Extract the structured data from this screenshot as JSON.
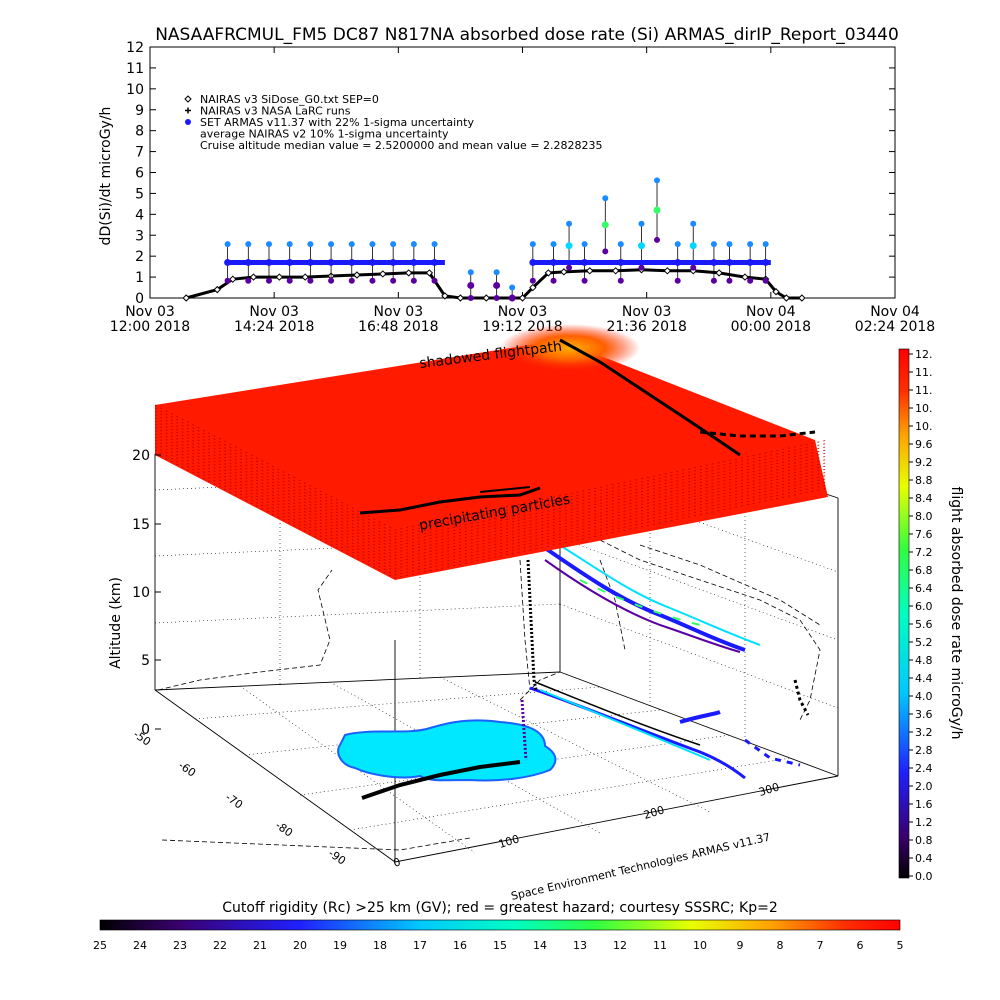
{
  "title": "NASAAFRCMUL_FM5 DC87 N817NA absorbed dose rate (Si) ARMAS_dirIP_Report_03440",
  "chart_data": [
    {
      "type": "scatter",
      "ylabel": "dD(Si)/dt microGy/h",
      "ylim": [
        0,
        12
      ],
      "yticks": [
        "0",
        "1",
        "2",
        "3",
        "4",
        "5",
        "6",
        "7",
        "8",
        "9",
        "10",
        "11",
        "12"
      ],
      "xticks": [
        {
          "line1": "Nov 03",
          "line2": "12:00 2018"
        },
        {
          "line1": "Nov 03",
          "line2": "14:24 2018"
        },
        {
          "line1": "Nov 03",
          "line2": "16:48 2018"
        },
        {
          "line1": "Nov 03",
          "line2": "19:12 2018"
        },
        {
          "line1": "Nov 03",
          "line2": "21:36 2018"
        },
        {
          "line1": "Nov 04",
          "line2": "00:00 2018"
        },
        {
          "line1": "Nov 04",
          "line2": "02:24 2018"
        }
      ],
      "xlim_hours": [
        12.0,
        26.4
      ],
      "legend": [
        {
          "symbol": "diamond",
          "text": "NAIRAS v3 SiDose_G0.txt SEP=0"
        },
        {
          "symbol": "plus",
          "text": "NAIRAS v3 NASA LaRC runs"
        },
        {
          "symbol": "filled-circle",
          "text": "SET ARMAS v11.37 with 22% 1-sigma uncertainty"
        },
        {
          "symbol": "none",
          "text": "average NAIRAS v2 10% 1-sigma uncertainty"
        },
        {
          "symbol": "none",
          "text": "Cruise altitude median value = 2.5200000 and mean value = 2.2828235"
        }
      ],
      "series": [
        {
          "name": "NAIRAS v3 SiDose_G0.txt SEP=0",
          "x_hours": [
            12.7,
            13.3,
            13.6,
            14.0,
            14.5,
            15.0,
            15.5,
            16.0,
            16.5,
            17.0,
            17.4,
            17.7,
            18.0,
            18.5,
            19.0,
            19.2,
            19.4,
            19.7,
            20.0,
            20.5,
            21.0,
            21.5,
            22.0,
            22.5,
            23.0,
            23.5,
            23.9,
            24.1,
            24.3,
            24.6
          ],
          "values": [
            0.0,
            0.4,
            0.9,
            1.0,
            1.0,
            1.0,
            1.05,
            1.1,
            1.15,
            1.2,
            1.2,
            0.1,
            0.0,
            0.0,
            0.0,
            0.0,
            0.5,
            1.2,
            1.25,
            1.3,
            1.3,
            1.35,
            1.3,
            1.3,
            1.2,
            1.0,
            0.9,
            0.3,
            0.0,
            0.0
          ]
        },
        {
          "name": "SET ARMAS v11.37 with 22% 1-sigma uncertainty",
          "x_hours": [
            13.5,
            13.9,
            14.3,
            14.7,
            15.1,
            15.5,
            15.9,
            16.3,
            16.7,
            17.1,
            17.5,
            18.2,
            18.7,
            19.0,
            19.4,
            19.8,
            20.1,
            20.4,
            20.8,
            21.1,
            21.5,
            21.8,
            22.2,
            22.5,
            22.9,
            23.2,
            23.6,
            23.9
          ],
          "values": [
            1.7,
            1.7,
            1.7,
            1.7,
            1.7,
            1.7,
            1.7,
            1.7,
            1.7,
            1.7,
            1.7,
            0.6,
            0.6,
            0.0,
            1.7,
            1.7,
            2.5,
            1.7,
            3.5,
            1.7,
            2.5,
            4.2,
            1.7,
            2.5,
            1.7,
            1.7,
            1.7,
            1.7
          ]
        }
      ]
    },
    {
      "type": "3d-surface",
      "ylabel": "Altitude (km)",
      "zticks": [
        "0",
        "5",
        "10",
        "15",
        "20"
      ],
      "lat_ticks": [
        "-50",
        "-60",
        "-70",
        "-80",
        "-90"
      ],
      "lon_ticks": [
        "0",
        "100",
        "200",
        "300"
      ],
      "annotations": [
        "shadowed flightpath",
        "precipitating particles"
      ],
      "credit": "Space Environment Technologies ARMAS v11.37"
    }
  ],
  "colorbar_right": {
    "label": "flight absorbed dose rate microGy/h",
    "ticks": [
      "0.0",
      "0.4",
      "0.8",
      "1.2",
      "1.6",
      "2.0",
      "2.4",
      "2.8",
      "3.2",
      "3.6",
      "4.0",
      "4.4",
      "4.8",
      "5.2",
      "5.6",
      "6.0",
      "6.4",
      "6.8",
      "7.2",
      "7.6",
      "8.0",
      "8.4",
      "8.8",
      "9.2",
      "9.6",
      "10.",
      "10.",
      "11.",
      "11.",
      "12."
    ]
  },
  "colorbar_bottom": {
    "label": "Cutoff rigidity (Rc) >25 km (GV); red = greatest hazard; courtesy SSSRC; Kp=2",
    "ticks": [
      "25",
      "24",
      "23",
      "22",
      "21",
      "20",
      "19",
      "18",
      "17",
      "16",
      "15",
      "14",
      "13",
      "12",
      "11",
      "10",
      "9",
      "8",
      "7",
      "6",
      "5"
    ]
  },
  "colors": {
    "red": "#ff1a00",
    "cyan": "#00e0ff",
    "blue": "#1a1aff",
    "purple": "#5a00a0",
    "green": "#33ff66",
    "black": "#000000"
  }
}
